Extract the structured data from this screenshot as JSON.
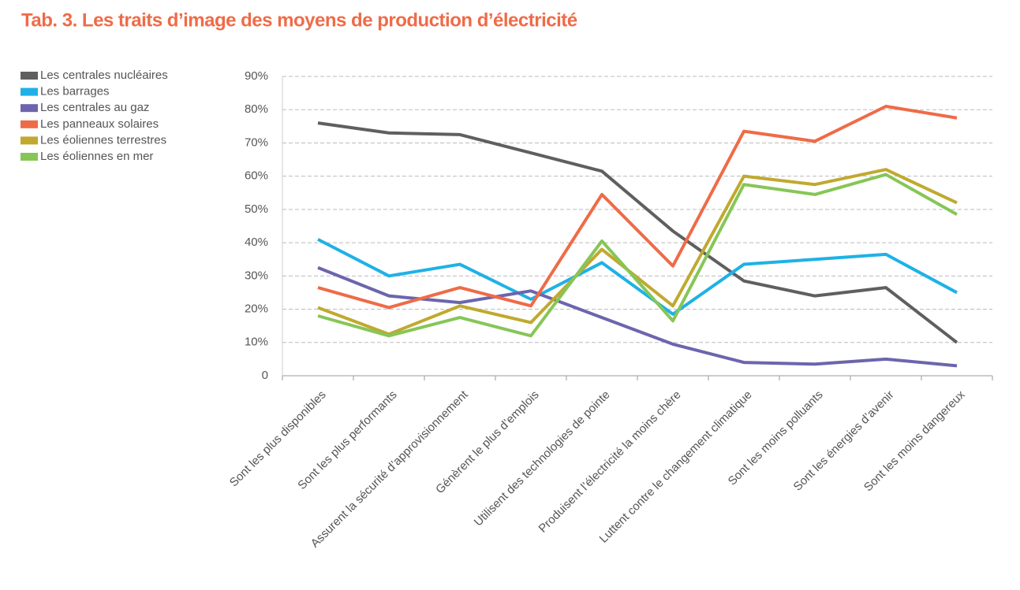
{
  "chart_data": {
    "type": "line",
    "title": "Tab. 3. Les traits d’image des moyens de production d’électricité",
    "categories": [
      "Sont les plus disponibles",
      "Sont les plus performants",
      "Assurent la sécurité d’approvisionnement",
      "Génèrent le plus d’emplois",
      "Utilisent des technologies de pointe",
      "Produisent l’électricité la moins chère",
      "Luttent contre le changement climatique",
      "Sont les moins polluants",
      "Sont les énergies d’avenir",
      "Sont les moins dangereux"
    ],
    "series": [
      {
        "name": "Les centrales nucléaires",
        "color": "#5f5f5f",
        "values": [
          76,
          73,
          72.5,
          67,
          61.5,
          43.5,
          28.5,
          24,
          26.5,
          10
        ]
      },
      {
        "name": "Les barrages",
        "color": "#1fb1e6",
        "values": [
          41,
          30,
          33.5,
          23,
          34,
          18.5,
          33.5,
          35,
          36.5,
          25
        ]
      },
      {
        "name": "Les centrales au gaz",
        "color": "#6c65ad",
        "values": [
          32.5,
          24,
          22,
          25.5,
          17.5,
          9.5,
          4,
          3.5,
          5,
          3
        ]
      },
      {
        "name": "Les panneaux solaires",
        "color": "#ef6b47",
        "values": [
          26.5,
          20.5,
          26.5,
          21,
          54.5,
          33,
          73.5,
          70.5,
          81,
          77.5
        ]
      },
      {
        "name": "Les éoliennes terrestres",
        "color": "#c0a92f",
        "values": [
          20.5,
          12.5,
          21,
          16,
          38,
          21,
          60,
          57.5,
          62,
          52
        ]
      },
      {
        "name": "Les éoliennes en mer",
        "color": "#86c657",
        "values": [
          18,
          12,
          17.5,
          12,
          40.5,
          16.5,
          57.5,
          54.5,
          60.5,
          48.5
        ]
      }
    ],
    "ylim": [
      0,
      90
    ],
    "yticks": [
      0,
      {
        "value": 10,
        "label": "10%"
      },
      {
        "value": 20,
        "label": "20%"
      },
      {
        "value": 30,
        "label": "30%"
      },
      {
        "value": 40,
        "label": "40%"
      },
      {
        "value": 50,
        "label": "50%"
      },
      {
        "value": 60,
        "label": "60%"
      },
      {
        "value": 70,
        "label": "70%"
      },
      {
        "value": 80,
        "label": "80%"
      },
      {
        "value": 90,
        "label": "90%"
      }
    ],
    "grid": true,
    "legend": "top-left"
  }
}
